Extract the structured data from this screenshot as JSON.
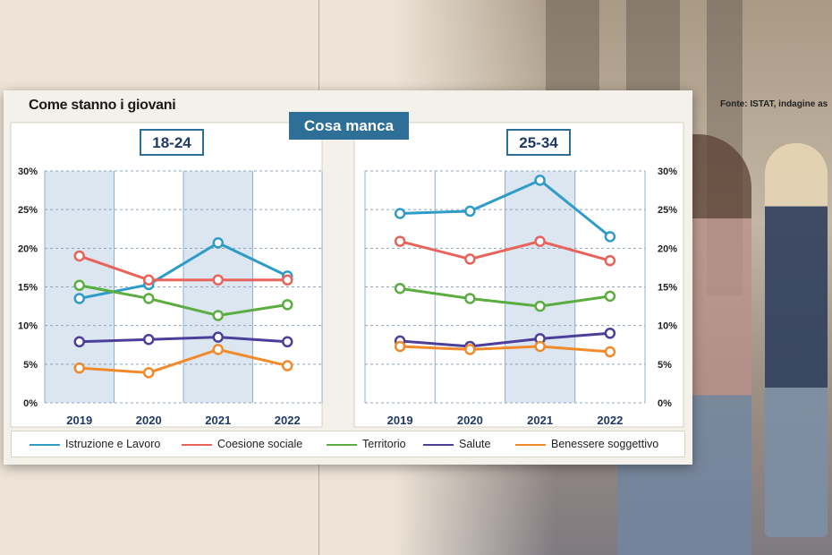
{
  "source": "Fonte: ISTAT, indagine as",
  "card_title": "Come stanno i giovani",
  "badge": "Cosa manca",
  "colors": {
    "istruzione": "#2f9cc8",
    "coesione": "#e8635a",
    "territorio": "#5aad3e",
    "salute": "#4b3f9a",
    "benessere": "#f08a2a",
    "accent": "#2d6f96"
  },
  "legend": [
    {
      "label": "Istruzione e Lavoro",
      "color_key": "istruzione"
    },
    {
      "label": "Coesione sociale",
      "color_key": "coesione"
    },
    {
      "label": "Territorio",
      "color_key": "territorio"
    },
    {
      "label": "Salute",
      "color_key": "salute"
    },
    {
      "label": "Benessere soggettivo",
      "color_key": "benessere"
    }
  ],
  "chart_data": [
    {
      "type": "line",
      "title": "18-24",
      "x": [
        "2019",
        "2020",
        "2021",
        "2022"
      ],
      "ylim": [
        0,
        30
      ],
      "yticks": [
        "0%",
        "5%",
        "10%",
        "15%",
        "20%",
        "25%",
        "30%"
      ],
      "series": [
        {
          "name": "Istruzione e Lavoro",
          "color_key": "istruzione",
          "values": [
            13.5,
            15.3,
            20.7,
            16.4
          ]
        },
        {
          "name": "Coesione sociale",
          "color_key": "coesione",
          "values": [
            19.0,
            15.9,
            15.9,
            15.9
          ]
        },
        {
          "name": "Territorio",
          "color_key": "territorio",
          "values": [
            15.2,
            13.5,
            11.3,
            12.7
          ]
        },
        {
          "name": "Salute",
          "color_key": "salute",
          "values": [
            7.9,
            8.2,
            8.5,
            7.9
          ]
        },
        {
          "name": "Benessere soggettivo",
          "color_key": "benessere",
          "values": [
            4.5,
            3.9,
            6.9,
            4.8
          ]
        }
      ]
    },
    {
      "type": "line",
      "title": "25-34",
      "x": [
        "2019",
        "2020",
        "2021",
        "2022"
      ],
      "ylim": [
        0,
        30
      ],
      "yticks": [
        "0%",
        "5%",
        "10%",
        "15%",
        "20%",
        "25%",
        "30%"
      ],
      "series": [
        {
          "name": "Istruzione e Lavoro",
          "color_key": "istruzione",
          "values": [
            24.5,
            24.8,
            28.8,
            21.5
          ]
        },
        {
          "name": "Coesione sociale",
          "color_key": "coesione",
          "values": [
            20.9,
            18.6,
            20.9,
            18.4
          ]
        },
        {
          "name": "Territorio",
          "color_key": "territorio",
          "values": [
            14.8,
            13.5,
            12.5,
            13.8
          ]
        },
        {
          "name": "Salute",
          "color_key": "salute",
          "values": [
            8.0,
            7.3,
            8.3,
            9.0
          ]
        },
        {
          "name": "Benessere soggettivo",
          "color_key": "benessere",
          "values": [
            7.3,
            6.9,
            7.3,
            6.6
          ]
        }
      ]
    }
  ]
}
